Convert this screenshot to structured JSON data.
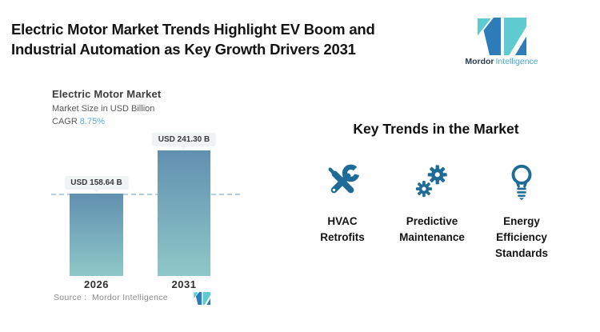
{
  "header": {
    "title_line1": "Electric Motor Market Trends Highlight EV Boom and",
    "title_line2": "Industrial Automation as Key Growth Drivers 2031"
  },
  "brand": {
    "name_bold": "Mordor",
    "name_light": "Intelligence"
  },
  "chart": {
    "title": "Electric Motor Market",
    "subtitle": "Market Size in USD Billion",
    "cagr_label": "CAGR",
    "cagr_value": "8.75%",
    "source": "Source :  Mordor Intelligence"
  },
  "chart_data": {
    "type": "bar",
    "title": "Electric Motor Market",
    "ylabel": "Market Size in USD Billion",
    "cagr": "8.75%",
    "categories": [
      "2026",
      "2031"
    ],
    "values": [
      158.64,
      241.3
    ],
    "data_labels": [
      "USD 158.64 B",
      "USD 241.30 B"
    ],
    "reference_line": 158.64,
    "ylim": [
      0,
      260
    ],
    "grid": false,
    "legend": false
  },
  "trends": {
    "heading": "Key Trends in the Market",
    "items": [
      {
        "icon": "tools-icon",
        "lines": [
          "HVAC",
          "Retrofits"
        ]
      },
      {
        "icon": "gears-icon",
        "lines": [
          "Predictive",
          "Maintenance"
        ]
      },
      {
        "icon": "lightbulb-icon",
        "lines": [
          "Energy",
          "Efficiency",
          "Standards"
        ]
      }
    ]
  },
  "colors": {
    "text_dark": "#141414",
    "text_gray": "#595959",
    "source_gray": "#8b8b8b",
    "bar_top": "#6190b0",
    "bar_bottom": "#8fc8c8",
    "dashed": "#b5cedd",
    "cagr": "#58abd7",
    "icon": "#1e6b97",
    "label_box_bg": "#eff3f4",
    "logo_teal": "#5fcbd1",
    "logo_blue": "#2e7cb8",
    "brand_dark": "#2c3e50",
    "brand_light": "#44aacb"
  }
}
